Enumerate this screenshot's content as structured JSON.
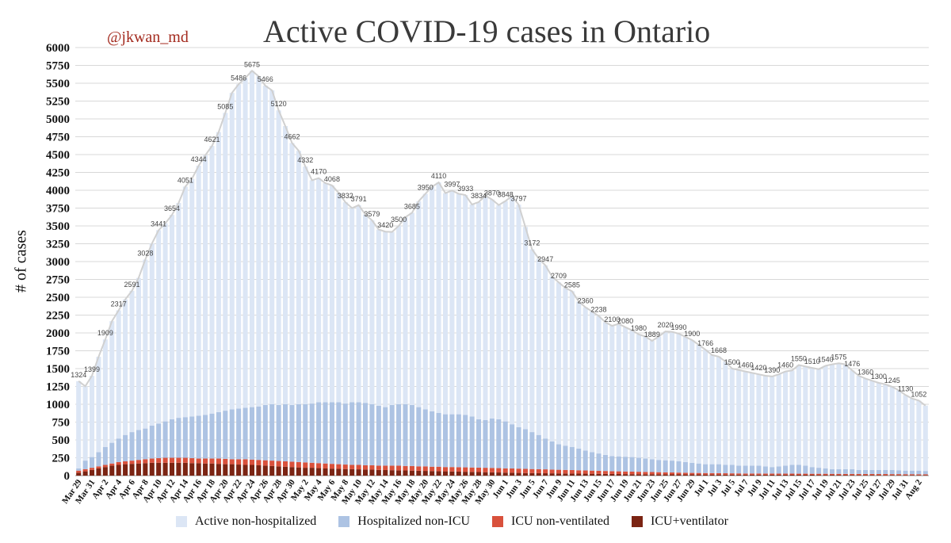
{
  "header": {
    "watermark": "@jkwan_md",
    "title": "Active COVID-19 cases in Ontario"
  },
  "colors": {
    "active_non_hospitalized": "#dce6f5",
    "hospitalized_non_icu": "#adc3e3",
    "icu_non_ventilated": "#d9513c",
    "icu_ventilator": "#7b2413",
    "total_line": "#d0d0d0",
    "grid": "#d8d8d8"
  },
  "chart_data": {
    "type": "bar",
    "stacked": true,
    "title": "Active COVID-19 cases in Ontario",
    "xlabel": "",
    "ylabel": "# of cases",
    "ylim": [
      0,
      6000
    ],
    "yticks": [
      0,
      250,
      500,
      750,
      1000,
      1250,
      1500,
      1750,
      2000,
      2250,
      2500,
      2750,
      3000,
      3250,
      3500,
      3750,
      4000,
      4250,
      4500,
      4750,
      5000,
      5250,
      5500,
      5750,
      6000
    ],
    "grid": true,
    "legend_position": "bottom",
    "x_tick_labels": [
      "Mar 29",
      "Mar 31",
      "Apr 2",
      "Apr 4",
      "Apr 6",
      "Apr 8",
      "Apr 10",
      "Apr 12",
      "Apr 14",
      "Apr 16",
      "Apr 18",
      "Apr 20",
      "Apr 22",
      "Apr 24",
      "Apr 26",
      "Apr 28",
      "Apr 30",
      "May 2",
      "May 4",
      "May 6",
      "May 8",
      "May 10",
      "May 12",
      "May 14",
      "May 16",
      "May 18",
      "May 20",
      "May 22",
      "May 24",
      "May 26",
      "May 28",
      "May 30",
      "Jun 1",
      "Jun 3",
      "Jun 5",
      "Jun 7",
      "Jun 9",
      "Jun 11",
      "Jun 13",
      "Jun 15",
      "Jun 17",
      "Jun 19",
      "Jun 21",
      "Jun 23",
      "Jun 25",
      "Jun 27",
      "Jun 29",
      "Jul 1",
      "Jul 3",
      "Jul 5",
      "Jul 7",
      "Jul 9",
      "Jul 11",
      "Jul 13",
      "Jul 15",
      "Jul 17",
      "Jul 19",
      "Jul 21",
      "Jul 23",
      "Jul 25",
      "Jul 27",
      "Jul 29",
      "Jul 31",
      "Aug 2",
      "Aug 4",
      "Aug 6",
      "Aug 8"
    ],
    "series_names": [
      "Active non-hospitalized",
      "Hospitalized non-ICU",
      "ICU non-ventilated",
      "ICU+ventilator"
    ],
    "totals": [
      1324,
      1252,
      1399,
      1666,
      1909,
      2165,
      2317,
      2470,
      2591,
      2771,
      3028,
      3254,
      3441,
      3537,
      3654,
      3822,
      4051,
      4160,
      4344,
      4491,
      4621,
      4816,
      5085,
      5365,
      5486,
      5575,
      5675,
      5597,
      5466,
      5400,
      5120,
      4900,
      4662,
      4553,
      4332,
      4140,
      4170,
      4100,
      4068,
      3962,
      3832,
      3750,
      3791,
      3660,
      3579,
      3450,
      3420,
      3415,
      3500,
      3622,
      3685,
      3846,
      3950,
      4050,
      4110,
      3960,
      3997,
      3950,
      3933,
      3800,
      3834,
      3924,
      3870,
      3792,
      3848,
      3918,
      3797,
      3486,
      3172,
      3041,
      2947,
      2790,
      2709,
      2630,
      2585,
      2440,
      2360,
      2300,
      2238,
      2150,
      2100,
      2127,
      2080,
      2036,
      1980,
      1950,
      1889,
      1950,
      2020,
      2015,
      1990,
      1944,
      1900,
      1833,
      1766,
      1690,
      1668,
      1599,
      1500,
      1480,
      1460,
      1440,
      1420,
      1400,
      1390,
      1420,
      1460,
      1474,
      1550,
      1530,
      1510,
      1492,
      1540,
      1560,
      1575,
      1560,
      1476,
      1400,
      1360,
      1330,
      1300,
      1280,
      1245,
      1195,
      1130,
      1080,
      1052,
      981
    ],
    "hospitalized_total": [
      100,
      210,
      260,
      330,
      400,
      460,
      520,
      570,
      610,
      640,
      660,
      700,
      730,
      760,
      790,
      810,
      820,
      830,
      840,
      850,
      870,
      890,
      910,
      930,
      940,
      950,
      960,
      970,
      990,
      1000,
      990,
      1000,
      990,
      1000,
      1000,
      1010,
      1030,
      1030,
      1030,
      1030,
      1010,
      1030,
      1030,
      1020,
      1000,
      980,
      960,
      990,
      1000,
      1000,
      990,
      960,
      930,
      900,
      880,
      860,
      860,
      860,
      850,
      830,
      790,
      780,
      800,
      790,
      760,
      720,
      680,
      650,
      610,
      570,
      520,
      480,
      440,
      420,
      400,
      380,
      350,
      330,
      310,
      290,
      275,
      270,
      265,
      260,
      250,
      240,
      230,
      220,
      215,
      210,
      200,
      190,
      180,
      170,
      160,
      160,
      160,
      150,
      150,
      140,
      140,
      140,
      140,
      130,
      120,
      130,
      140,
      150,
      150,
      140,
      120,
      110,
      100,
      90,
      90,
      90,
      90,
      80,
      80,
      80,
      80,
      80,
      80,
      75,
      70,
      70,
      70,
      65,
      60,
      55
    ],
    "icu_total": [
      70,
      90,
      110,
      130,
      150,
      170,
      190,
      200,
      210,
      220,
      230,
      240,
      245,
      250,
      250,
      250,
      250,
      245,
      240,
      240,
      240,
      240,
      235,
      230,
      230,
      230,
      225,
      220,
      215,
      210,
      205,
      200,
      195,
      190,
      185,
      180,
      175,
      170,
      165,
      160,
      155,
      150,
      150,
      145,
      145,
      140,
      140,
      140,
      140,
      135,
      135,
      130,
      130,
      125,
      125,
      120,
      120,
      118,
      116,
      114,
      112,
      110,
      108,
      105,
      102,
      100,
      98,
      95,
      92,
      90,
      88,
      85,
      82,
      80,
      78,
      75,
      72,
      70,
      68,
      65,
      62,
      60,
      58,
      56,
      54,
      52,
      50,
      48,
      46,
      44,
      42,
      40,
      38,
      37,
      36,
      35,
      34,
      33,
      32,
      31,
      30,
      30,
      30,
      29,
      29,
      28,
      28,
      28,
      27,
      27,
      26,
      26,
      26,
      25,
      25,
      24,
      24,
      24,
      23,
      23,
      22,
      22,
      21,
      21,
      20,
      20,
      19,
      19
    ],
    "ventilated": [
      40,
      60,
      80,
      100,
      120,
      140,
      150,
      160,
      165,
      170,
      175,
      180,
      180,
      180,
      180,
      180,
      180,
      175,
      175,
      170,
      170,
      165,
      160,
      160,
      155,
      150,
      150,
      145,
      140,
      135,
      130,
      125,
      120,
      115,
      110,
      110,
      105,
      100,
      98,
      95,
      92,
      90,
      88,
      85,
      83,
      80,
      78,
      76,
      74,
      72,
      70,
      68,
      66,
      64,
      62,
      60,
      58,
      56,
      54,
      52,
      50,
      48,
      46,
      44,
      42,
      40,
      38,
      36,
      35,
      34,
      33,
      32,
      31,
      30,
      29,
      28,
      27,
      26,
      25,
      24,
      23,
      22,
      21,
      20,
      20,
      19,
      19,
      18,
      18,
      17,
      17,
      16,
      16,
      16,
      15,
      15,
      15,
      14,
      14,
      14,
      13,
      13,
      13,
      12,
      12,
      12,
      12,
      11,
      11,
      11,
      11,
      10,
      10,
      10,
      10,
      10,
      9,
      9,
      9,
      9,
      9,
      8,
      8,
      8,
      8,
      8,
      8,
      8
    ]
  }
}
